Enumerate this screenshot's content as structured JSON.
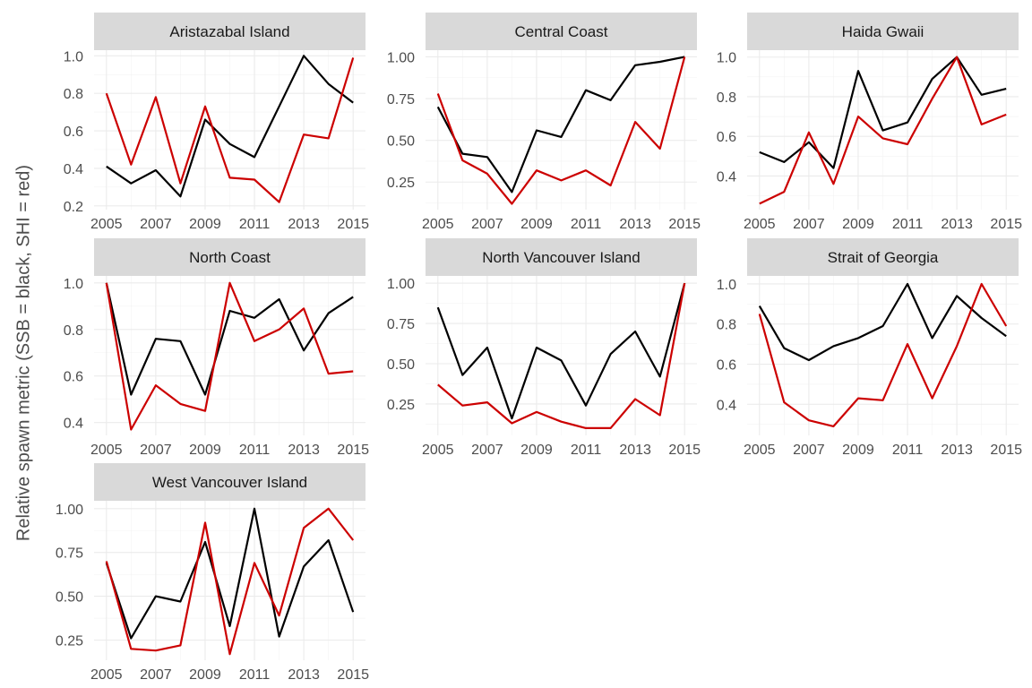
{
  "figure": {
    "ylabel": "Relative spawn metric (SSB = black, SHI = red)",
    "colors": {
      "SSB": "#000000",
      "SHI": "#cc0000",
      "strip_bg": "#d9d9d9",
      "grid": "#ebebeb"
    }
  },
  "chart_data": [
    {
      "type": "line",
      "title": "Aristazabal Island",
      "x": [
        2005,
        2006,
        2007,
        2008,
        2009,
        2010,
        2011,
        2012,
        2013,
        2014,
        2015
      ],
      "xticks": [
        2005,
        2007,
        2009,
        2011,
        2013,
        2015
      ],
      "xlim": [
        2004.5,
        2015.5
      ],
      "ylim": [
        0.18,
        1.03
      ],
      "yticks": [
        0.2,
        0.4,
        0.6,
        0.8,
        1.0
      ],
      "ytick_labels": [
        "0.2",
        "0.4",
        "0.6",
        "0.8",
        "1.0"
      ],
      "series": [
        {
          "key": "SSB",
          "color": "#000000",
          "values": [
            0.41,
            0.32,
            0.39,
            0.25,
            0.66,
            0.53,
            0.46,
            0.73,
            1.0,
            0.85,
            0.75
          ]
        },
        {
          "key": "SHI",
          "color": "#cc0000",
          "values": [
            0.8,
            0.42,
            0.78,
            0.32,
            0.73,
            0.35,
            0.34,
            0.22,
            0.58,
            0.56,
            0.99
          ]
        }
      ]
    },
    {
      "type": "line",
      "title": "Central Coast",
      "x": [
        2005,
        2006,
        2007,
        2008,
        2009,
        2010,
        2011,
        2012,
        2013,
        2014,
        2015
      ],
      "xticks": [
        2005,
        2007,
        2009,
        2011,
        2013,
        2015
      ],
      "xlim": [
        2004.5,
        2015.5
      ],
      "ylim": [
        0.085,
        1.04
      ],
      "yticks": [
        0.25,
        0.5,
        0.75,
        1.0
      ],
      "ytick_labels": [
        "0.25",
        "0.50",
        "0.75",
        "1.00"
      ],
      "series": [
        {
          "key": "SSB",
          "color": "#000000",
          "values": [
            0.7,
            0.42,
            0.4,
            0.19,
            0.56,
            0.52,
            0.8,
            0.74,
            0.95,
            0.97,
            1.0
          ]
        },
        {
          "key": "SHI",
          "color": "#cc0000",
          "values": [
            0.78,
            0.38,
            0.3,
            0.12,
            0.32,
            0.26,
            0.32,
            0.23,
            0.61,
            0.45,
            1.0
          ]
        }
      ]
    },
    {
      "type": "line",
      "title": "Haida Gwaii",
      "x": [
        2005,
        2006,
        2007,
        2008,
        2009,
        2010,
        2011,
        2012,
        2013,
        2014,
        2015
      ],
      "xticks": [
        2005,
        2007,
        2009,
        2011,
        2013,
        2015
      ],
      "xlim": [
        2004.5,
        2015.5
      ],
      "ylim": [
        0.23,
        1.035
      ],
      "yticks": [
        0.4,
        0.6,
        0.8,
        1.0
      ],
      "ytick_labels": [
        "0.4",
        "0.6",
        "0.8",
        "1.0"
      ],
      "series": [
        {
          "key": "SSB",
          "color": "#000000",
          "values": [
            0.52,
            0.47,
            0.57,
            0.44,
            0.93,
            0.63,
            0.67,
            0.89,
            1.0,
            0.81,
            0.84
          ]
        },
        {
          "key": "SHI",
          "color": "#cc0000",
          "values": [
            0.26,
            0.32,
            0.62,
            0.36,
            0.7,
            0.59,
            0.56,
            0.79,
            1.0,
            0.66,
            0.71
          ]
        }
      ]
    },
    {
      "type": "line",
      "title": "North Coast",
      "x": [
        2005,
        2006,
        2007,
        2008,
        2009,
        2010,
        2011,
        2012,
        2013,
        2014,
        2015
      ],
      "xticks": [
        2005,
        2007,
        2009,
        2011,
        2013,
        2015
      ],
      "xlim": [
        2004.5,
        2015.5
      ],
      "ylim": [
        0.345,
        1.03
      ],
      "yticks": [
        0.4,
        0.6,
        0.8,
        1.0
      ],
      "ytick_labels": [
        "0.4",
        "0.6",
        "0.8",
        "1.0"
      ],
      "series": [
        {
          "key": "SSB",
          "color": "#000000",
          "values": [
            1.0,
            0.52,
            0.76,
            0.75,
            0.52,
            0.88,
            0.85,
            0.93,
            0.71,
            0.87,
            0.94
          ]
        },
        {
          "key": "SHI",
          "color": "#cc0000",
          "values": [
            1.0,
            0.37,
            0.56,
            0.48,
            0.45,
            1.0,
            0.75,
            0.8,
            0.89,
            0.61,
            0.62
          ]
        }
      ]
    },
    {
      "type": "line",
      "title": "North Vancouver Island",
      "x": [
        2005,
        2006,
        2007,
        2008,
        2009,
        2010,
        2011,
        2012,
        2013,
        2014,
        2015
      ],
      "xticks": [
        2005,
        2007,
        2009,
        2011,
        2013,
        2015
      ],
      "xlim": [
        2004.5,
        2015.5
      ],
      "ylim": [
        0.055,
        1.045
      ],
      "yticks": [
        0.25,
        0.5,
        0.75,
        1.0
      ],
      "ytick_labels": [
        "0.25",
        "0.50",
        "0.75",
        "1.00"
      ],
      "series": [
        {
          "key": "SSB",
          "color": "#000000",
          "values": [
            0.85,
            0.43,
            0.6,
            0.16,
            0.6,
            0.52,
            0.24,
            0.56,
            0.7,
            0.42,
            1.0
          ]
        },
        {
          "key": "SHI",
          "color": "#cc0000",
          "values": [
            0.37,
            0.24,
            0.26,
            0.13,
            0.2,
            0.14,
            0.1,
            0.1,
            0.28,
            0.18,
            1.0
          ]
        }
      ]
    },
    {
      "type": "line",
      "title": "Strait of Georgia",
      "x": [
        2005,
        2006,
        2007,
        2008,
        2009,
        2010,
        2011,
        2012,
        2013,
        2014,
        2015
      ],
      "xticks": [
        2005,
        2007,
        2009,
        2011,
        2013,
        2015
      ],
      "xlim": [
        2004.5,
        2015.5
      ],
      "ylim": [
        0.245,
        1.04
      ],
      "yticks": [
        0.4,
        0.6,
        0.8,
        1.0
      ],
      "ytick_labels": [
        "0.4",
        "0.6",
        "0.8",
        "1.0"
      ],
      "series": [
        {
          "key": "SSB",
          "color": "#000000",
          "values": [
            0.89,
            0.68,
            0.62,
            0.69,
            0.73,
            0.79,
            1.0,
            0.73,
            0.94,
            0.83,
            0.74
          ]
        },
        {
          "key": "SHI",
          "color": "#cc0000",
          "values": [
            0.85,
            0.41,
            0.32,
            0.29,
            0.43,
            0.42,
            0.7,
            0.43,
            0.69,
            1.0,
            0.79
          ]
        }
      ]
    },
    {
      "type": "line",
      "title": "West Vancouver Island",
      "x": [
        2005,
        2006,
        2007,
        2008,
        2009,
        2010,
        2011,
        2012,
        2013,
        2014,
        2015
      ],
      "xticks": [
        2005,
        2007,
        2009,
        2011,
        2013,
        2015
      ],
      "xlim": [
        2004.5,
        2015.5
      ],
      "ylim": [
        0.135,
        1.045
      ],
      "yticks": [
        0.25,
        0.5,
        0.75,
        1.0
      ],
      "ytick_labels": [
        "0.25",
        "0.50",
        "0.75",
        "1.00"
      ],
      "series": [
        {
          "key": "SSB",
          "color": "#000000",
          "values": [
            0.69,
            0.26,
            0.5,
            0.47,
            0.81,
            0.33,
            1.0,
            0.27,
            0.67,
            0.82,
            0.41
          ]
        },
        {
          "key": "SHI",
          "color": "#cc0000",
          "values": [
            0.7,
            0.2,
            0.19,
            0.22,
            0.92,
            0.17,
            0.69,
            0.39,
            0.89,
            1.0,
            0.82
          ]
        }
      ]
    }
  ]
}
